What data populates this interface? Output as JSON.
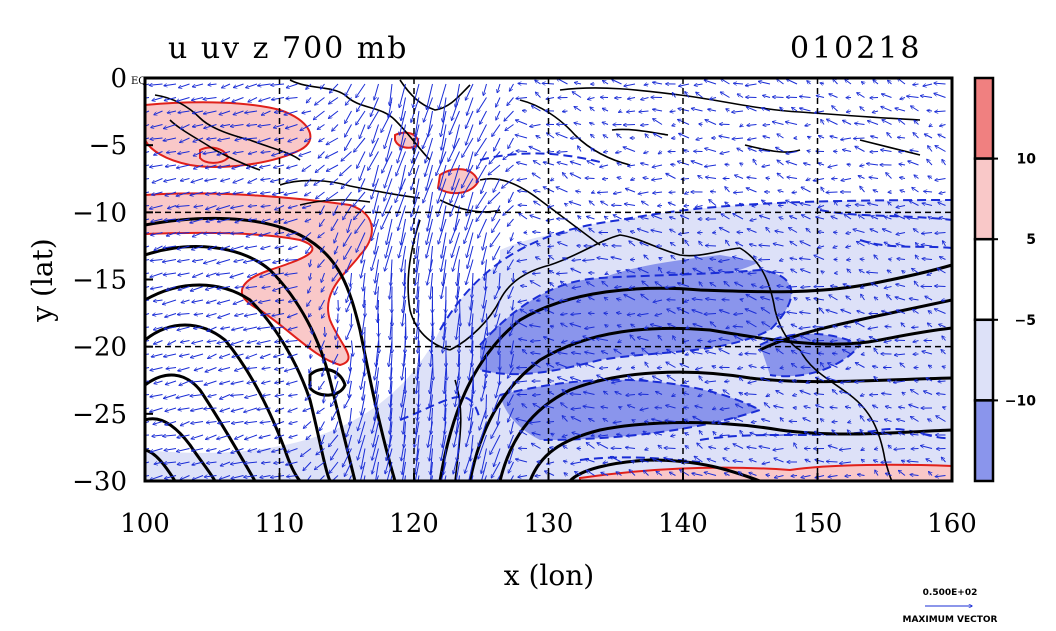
{
  "chart_data": {
    "type": "heatmap",
    "title": "u uv z 700 mb",
    "date_label": "010218",
    "xlabel": "x (lon)",
    "ylabel": "y (lat)",
    "xlim": [
      100,
      160
    ],
    "ylim": [
      -30,
      0
    ],
    "x_ticks": [
      100,
      110,
      120,
      130,
      140,
      150,
      160
    ],
    "y_ticks": [
      0,
      -5,
      -10,
      -15,
      -20,
      -25,
      -30
    ],
    "y_tick_labels": [
      "0",
      "−5",
      "−10",
      "−15",
      "−20",
      "−25",
      "−30"
    ],
    "y_zero_suffix": "EQ",
    "grid": true,
    "grid_lines_x": [
      110,
      120,
      130,
      140,
      150
    ],
    "grid_lines_y": [
      -10,
      -20
    ],
    "colorbar": {
      "placement": "right",
      "bins": [
        {
          "label": "10",
          "color": "#f08080"
        },
        {
          "label": "5",
          "color": "#f9c8c8"
        },
        {
          "label": "−5",
          "color": "#ffffff"
        },
        {
          "label": "−10",
          "color": "#dde1f8"
        },
        {
          "label": "",
          "color": "#8a95ec"
        }
      ],
      "tick_labels": [
        "10",
        "5",
        "−5",
        "−10"
      ]
    },
    "colors": {
      "positive_strong": "#f08080",
      "positive": "#f9c8c8",
      "negative": "#dde1f8",
      "negative_strong": "#8a95ec",
      "wind_vectors": "#1a2dd6",
      "u_contour_positive": "#e0201a",
      "u_contour_negative": "#1a2dd6",
      "z_contour": "#000000"
    },
    "vector_legend": {
      "value": "0.500E+02",
      "label": "MAXIMUM VECTOR"
    }
  }
}
